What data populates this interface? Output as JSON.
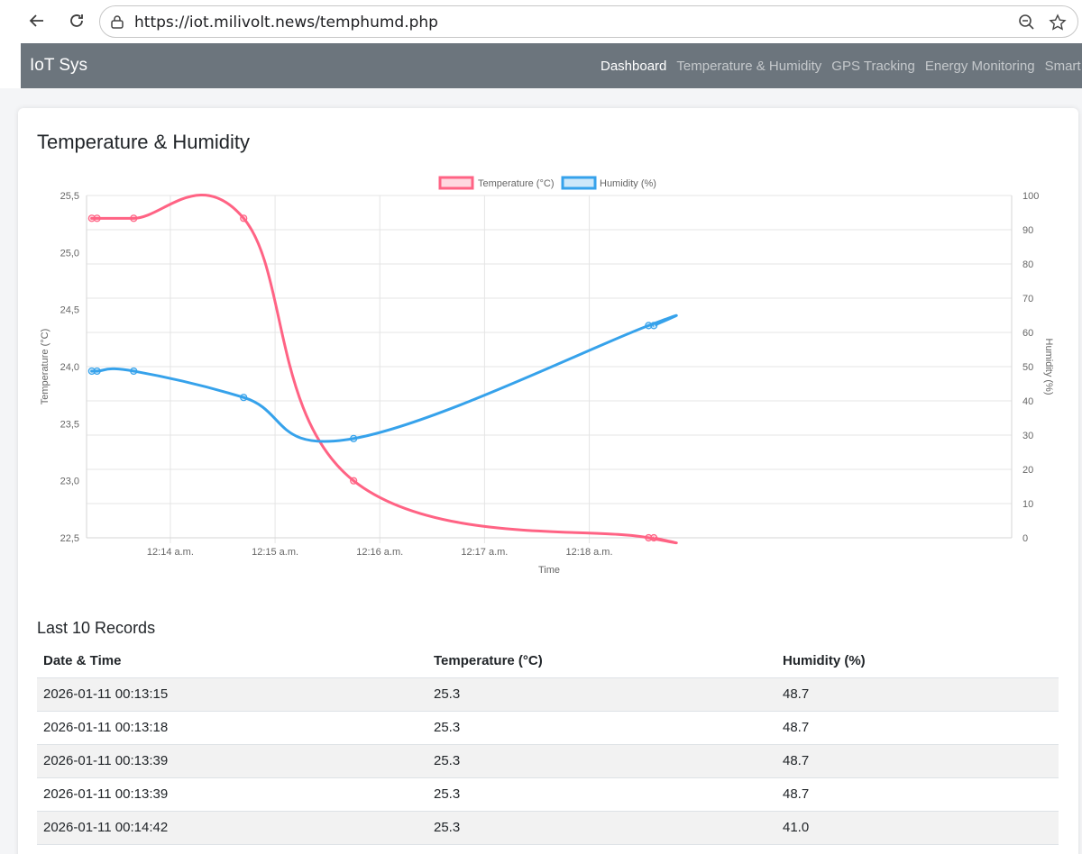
{
  "browser": {
    "url": "https://iot.milivolt.news/temphumd.php"
  },
  "navbar": {
    "brand": "IoT Sys",
    "links": [
      "Dashboard",
      "Temperature & Humidity",
      "GPS Tracking",
      "Energy Monitoring",
      "Smart I"
    ]
  },
  "page": {
    "title": "Temperature & Humidity",
    "records_title": "Last 10 Records"
  },
  "colors": {
    "temperature": "#ff6384",
    "humidity": "#36a2eb",
    "navbar": "#6c757d"
  },
  "chart_data": {
    "type": "line",
    "legend": [
      "Temperature (°C)",
      "Humidity (%)"
    ],
    "legend_position": "top",
    "xlabel": "Time",
    "ylabel_left": "Temperature (°C)",
    "ylabel_right": "Humidity (%)",
    "x_ticks": [
      "12:14 a.m.",
      "12:15 a.m.",
      "12:16 a.m.",
      "12:17 a.m.",
      "12:18 a.m."
    ],
    "y_left_ticks": [
      "25,5",
      "25,0",
      "24,5",
      "24,0",
      "23,5",
      "23,0",
      "22,5"
    ],
    "y_right_ticks": [
      "100",
      "90",
      "80",
      "70",
      "60",
      "50",
      "40",
      "30",
      "20",
      "10",
      "0"
    ],
    "ylim_left": [
      22.5,
      25.5
    ],
    "ylim_right": [
      0,
      100
    ],
    "xlim_seconds": [
      792,
      1322
    ],
    "x_ticks_seconds": [
      840,
      900,
      960,
      1020,
      1080
    ],
    "grid": true,
    "series": [
      {
        "name": "Temperature (°C)",
        "axis": "left",
        "x": [
          "00:13:15",
          "00:13:18",
          "00:13:39",
          "00:14:42",
          "00:15:45",
          "00:18:34",
          "00:18:37"
        ],
        "y": [
          25.3,
          25.3,
          25.3,
          25.3,
          23.0,
          22.5,
          22.5
        ]
      },
      {
        "name": "Humidity (%)",
        "axis": "right",
        "x": [
          "00:13:15",
          "00:13:18",
          "00:13:39",
          "00:14:42",
          "00:15:45",
          "00:18:34",
          "00:18:37"
        ],
        "y": [
          48.7,
          48.7,
          48.7,
          41.0,
          29.0,
          62.0,
          62.0
        ]
      }
    ]
  },
  "table": {
    "headers": [
      "Date & Time",
      "Temperature (°C)",
      "Humidity (%)"
    ],
    "rows": [
      [
        "2026-01-11 00:13:15",
        "25.3",
        "48.7"
      ],
      [
        "2026-01-11 00:13:18",
        "25.3",
        "48.7"
      ],
      [
        "2026-01-11 00:13:39",
        "25.3",
        "48.7"
      ],
      [
        "2026-01-11 00:13:39",
        "25.3",
        "48.7"
      ],
      [
        "2026-01-11 00:14:42",
        "25.3",
        "41.0"
      ]
    ]
  }
}
